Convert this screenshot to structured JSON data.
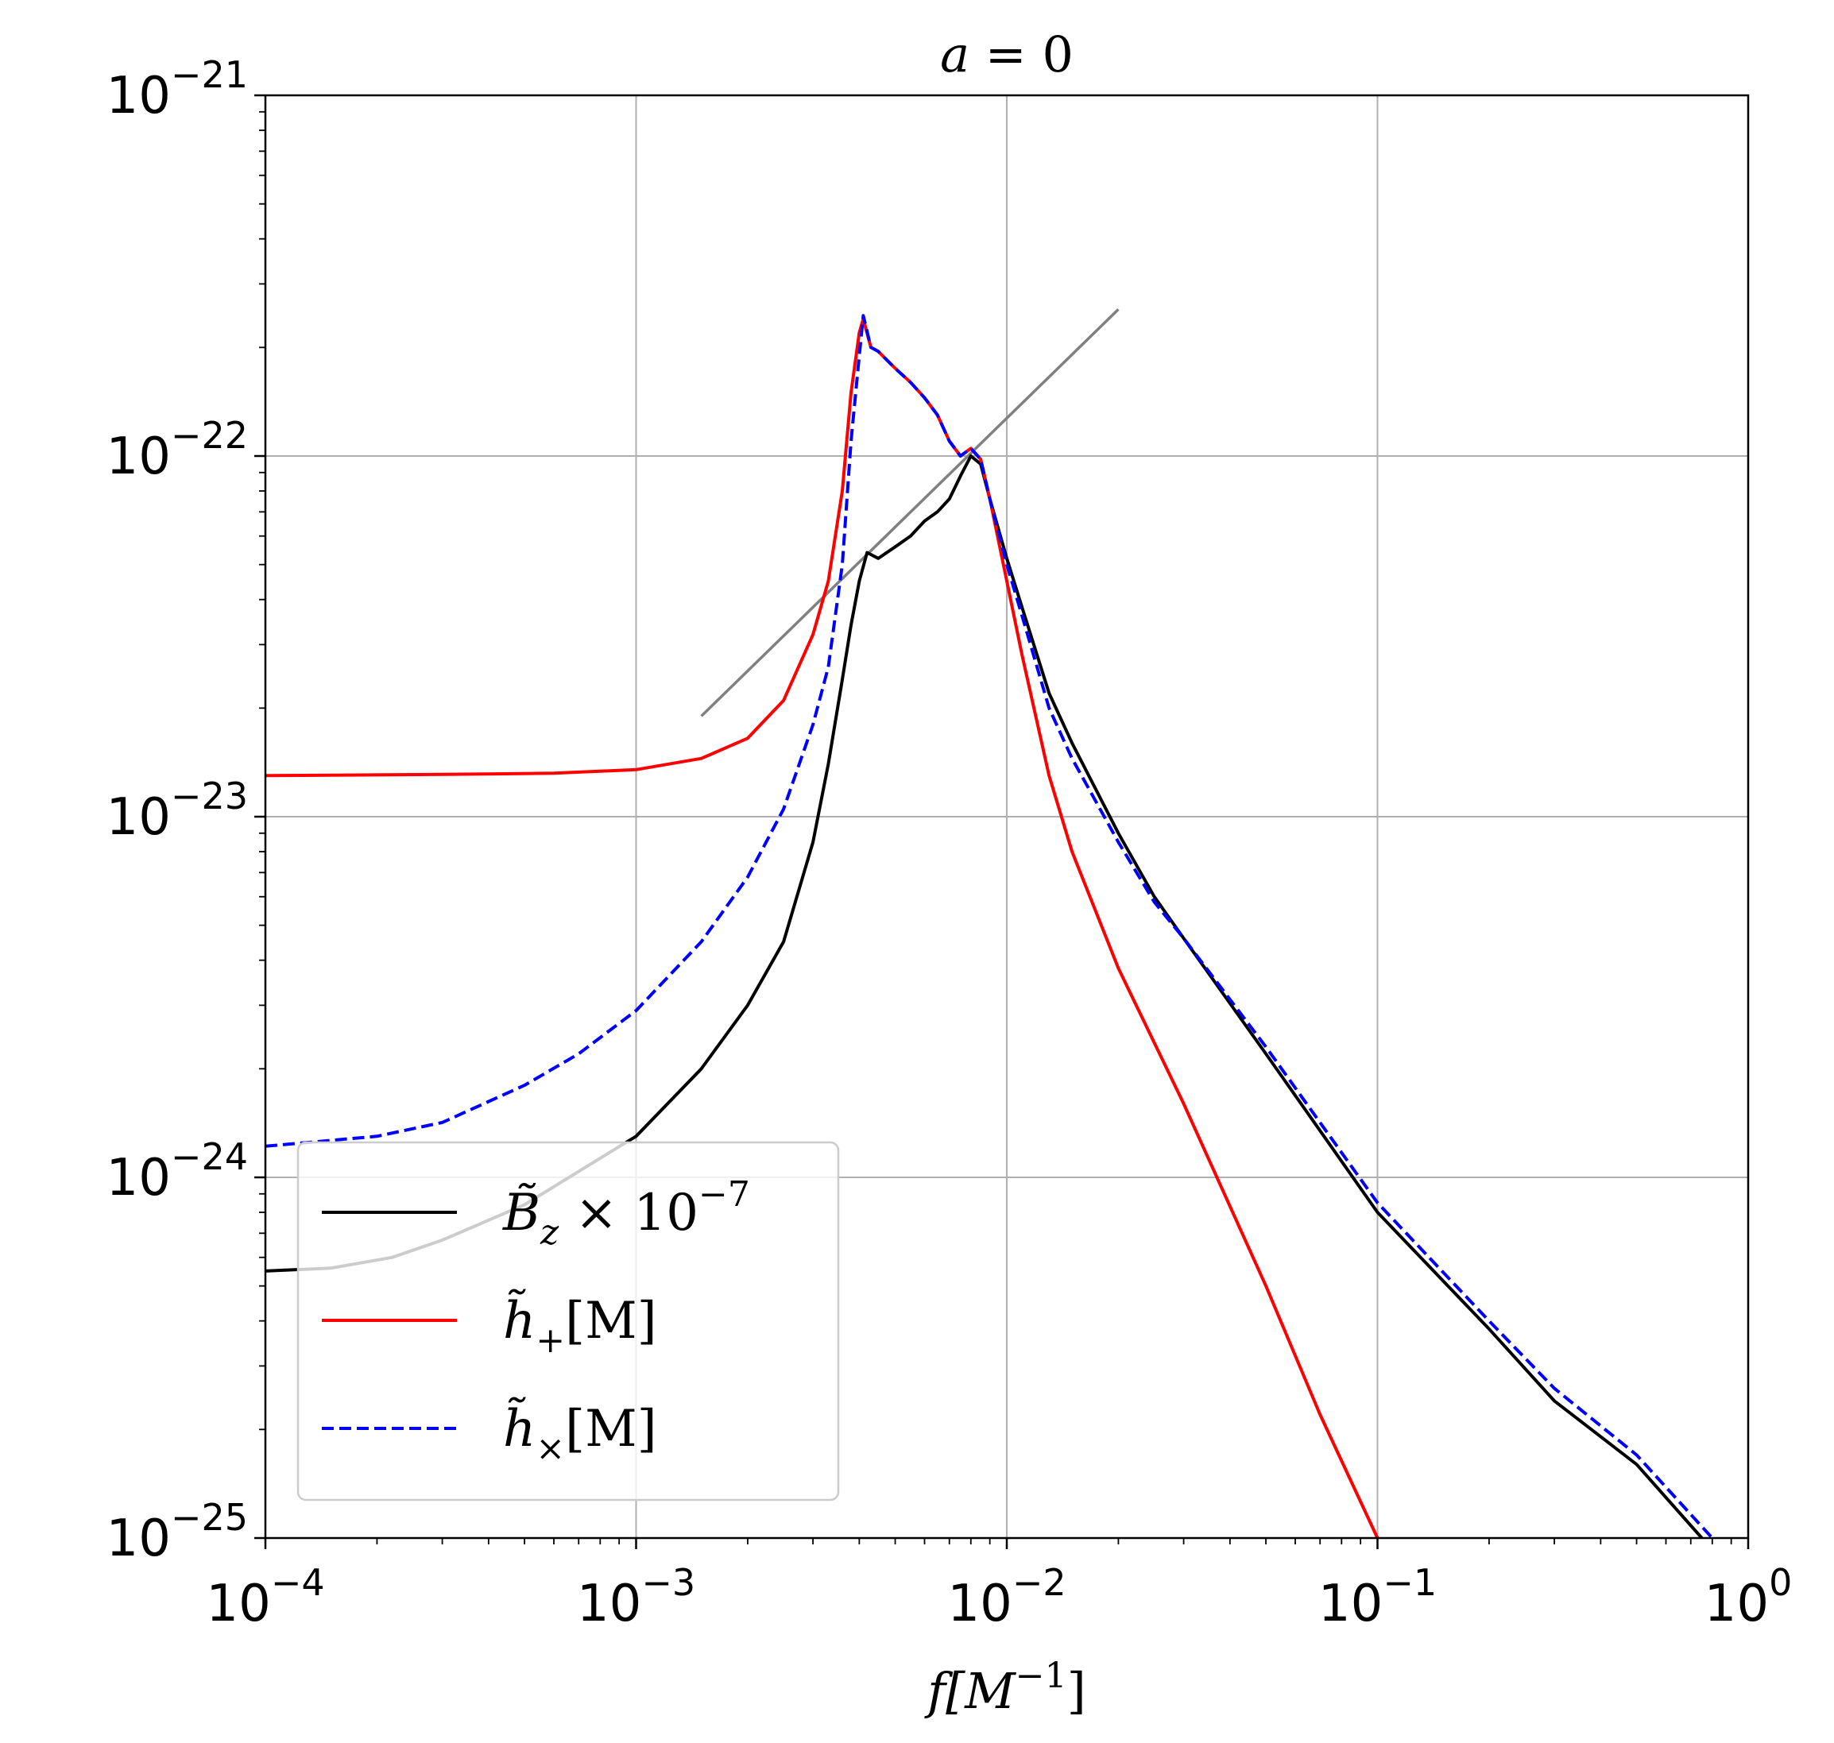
{
  "chart_data": {
    "type": "line",
    "title": "a = 0",
    "title_parts": {
      "var": "a",
      "eq": " = 0"
    },
    "xlabel": "f[M⁻¹]",
    "xlabel_parts": {
      "var": "f",
      "rest": "[M",
      "sup": "−1",
      "close": "]"
    },
    "ylabel": "",
    "x_scale": "log",
    "y_scale": "log",
    "xlim": [
      0.0001,
      1
    ],
    "ylim": [
      1e-25,
      1e-21
    ],
    "grid": true,
    "legend_position": "lower-left",
    "x_ticks": [
      {
        "value": 0.0001,
        "base": "10",
        "exp": "−4"
      },
      {
        "value": 0.001,
        "base": "10",
        "exp": "−3"
      },
      {
        "value": 0.01,
        "base": "10",
        "exp": "−2"
      },
      {
        "value": 0.1,
        "base": "10",
        "exp": "−1"
      },
      {
        "value": 1,
        "base": "10",
        "exp": "0"
      }
    ],
    "y_ticks": [
      {
        "value": 1e-25,
        "base": "10",
        "exp": "−25"
      },
      {
        "value": 1e-24,
        "base": "10",
        "exp": "−24"
      },
      {
        "value": 1e-23,
        "base": "10",
        "exp": "−23"
      },
      {
        "value": 1e-22,
        "base": "10",
        "exp": "−22"
      },
      {
        "value": 1e-21,
        "base": "10",
        "exp": "−21"
      }
    ],
    "series": [
      {
        "name": "B̃z × 10⁻⁷",
        "legend": {
          "main": "B̃",
          "sub": "z",
          "mid": " × 10",
          "sup": "−7"
        },
        "color": "#000000",
        "dash": "solid",
        "points": [
          [
            0.0001,
            5.5e-25
          ],
          [
            0.00015,
            5.6e-25
          ],
          [
            0.00022,
            6e-25
          ],
          [
            0.0003,
            6.7e-25
          ],
          [
            0.0005,
            8.4e-25
          ],
          [
            0.0008,
            1.13e-24
          ],
          [
            0.001,
            1.3e-24
          ],
          [
            0.0015,
            2e-24
          ],
          [
            0.002,
            3e-24
          ],
          [
            0.0025,
            4.5e-24
          ],
          [
            0.003,
            8.5e-24
          ],
          [
            0.0033,
            1.4e-23
          ],
          [
            0.0036,
            2.4e-23
          ],
          [
            0.0038,
            3.4e-23
          ],
          [
            0.004,
            4.5e-23
          ],
          [
            0.0042,
            5.4e-23
          ],
          [
            0.0045,
            5.2e-23
          ],
          [
            0.005,
            5.6e-23
          ],
          [
            0.0055,
            6e-23
          ],
          [
            0.006,
            6.6e-23
          ],
          [
            0.0065,
            7e-23
          ],
          [
            0.007,
            7.6e-23
          ],
          [
            0.0075,
            8.8e-23
          ],
          [
            0.008,
            1e-22
          ],
          [
            0.0085,
            9.5e-23
          ],
          [
            0.009,
            7.6e-23
          ],
          [
            0.01,
            5.2e-23
          ],
          [
            0.011,
            3.8e-23
          ],
          [
            0.013,
            2.2e-23
          ],
          [
            0.015,
            1.6e-23
          ],
          [
            0.02,
            9e-24
          ],
          [
            0.025,
            6e-24
          ],
          [
            0.03,
            4.6e-24
          ],
          [
            0.05,
            2.2e-24
          ],
          [
            0.1,
            8e-25
          ],
          [
            0.2,
            3.8e-25
          ],
          [
            0.3,
            2.4e-25
          ],
          [
            0.5,
            1.6e-25
          ],
          [
            0.75,
            1e-25
          ]
        ]
      },
      {
        "name": "h̃+ [M]",
        "legend": {
          "main": "h̃",
          "sub": "+",
          "mid": "[M]",
          "sup": ""
        },
        "color": "#ff0000",
        "dash": "solid",
        "points": [
          [
            0.0001,
            1.3e-23
          ],
          [
            0.0003,
            1.31e-23
          ],
          [
            0.0006,
            1.32e-23
          ],
          [
            0.001,
            1.35e-23
          ],
          [
            0.0015,
            1.45e-23
          ],
          [
            0.002,
            1.65e-23
          ],
          [
            0.0025,
            2.1e-23
          ],
          [
            0.003,
            3.2e-23
          ],
          [
            0.0033,
            4.5e-23
          ],
          [
            0.0036,
            8e-23
          ],
          [
            0.0038,
            1.5e-22
          ],
          [
            0.004,
            2.2e-22
          ],
          [
            0.0041,
            2.4e-22
          ],
          [
            0.0043,
            2e-22
          ],
          [
            0.0045,
            1.95e-22
          ],
          [
            0.005,
            1.75e-22
          ],
          [
            0.0055,
            1.6e-22
          ],
          [
            0.006,
            1.45e-22
          ],
          [
            0.0065,
            1.3e-22
          ],
          [
            0.007,
            1.1e-22
          ],
          [
            0.0075,
            1e-22
          ],
          [
            0.008,
            1.05e-22
          ],
          [
            0.0085,
            9.8e-23
          ],
          [
            0.009,
            7.6e-23
          ],
          [
            0.01,
            4.5e-23
          ],
          [
            0.011,
            2.8e-23
          ],
          [
            0.013,
            1.3e-23
          ],
          [
            0.015,
            8e-24
          ],
          [
            0.02,
            3.8e-24
          ],
          [
            0.03,
            1.6e-24
          ],
          [
            0.05,
            5e-25
          ],
          [
            0.07,
            2.2e-25
          ],
          [
            0.1,
            1e-25
          ]
        ]
      },
      {
        "name": "h̃× [M]",
        "legend": {
          "main": "h̃",
          "sub": "×",
          "mid": "[M]",
          "sup": ""
        },
        "color": "#0000ff",
        "dash": "dashed",
        "points": [
          [
            0.0001,
            1.22e-24
          ],
          [
            0.0002,
            1.3e-24
          ],
          [
            0.0003,
            1.42e-24
          ],
          [
            0.0005,
            1.8e-24
          ],
          [
            0.0007,
            2.2e-24
          ],
          [
            0.001,
            2.9e-24
          ],
          [
            0.0015,
            4.5e-24
          ],
          [
            0.002,
            6.8e-24
          ],
          [
            0.0025,
            1.05e-23
          ],
          [
            0.003,
            1.8e-23
          ],
          [
            0.0033,
            2.6e-23
          ],
          [
            0.0036,
            5e-23
          ],
          [
            0.0038,
            1.1e-22
          ],
          [
            0.004,
            1.9e-22
          ],
          [
            0.0041,
            2.45e-22
          ],
          [
            0.0043,
            2e-22
          ],
          [
            0.0045,
            1.95e-22
          ],
          [
            0.005,
            1.75e-22
          ],
          [
            0.0055,
            1.6e-22
          ],
          [
            0.006,
            1.45e-22
          ],
          [
            0.0065,
            1.3e-22
          ],
          [
            0.007,
            1.1e-22
          ],
          [
            0.0075,
            1e-22
          ],
          [
            0.008,
            1.05e-22
          ],
          [
            0.0085,
            9.8e-23
          ],
          [
            0.009,
            7.6e-23
          ],
          [
            0.01,
            5e-23
          ],
          [
            0.011,
            3.6e-23
          ],
          [
            0.013,
            2e-23
          ],
          [
            0.015,
            1.45e-23
          ],
          [
            0.02,
            8.5e-24
          ],
          [
            0.025,
            5.8e-24
          ],
          [
            0.03,
            4.6e-24
          ],
          [
            0.05,
            2.3e-24
          ],
          [
            0.1,
            8.5e-25
          ],
          [
            0.2,
            4e-25
          ],
          [
            0.3,
            2.6e-25
          ],
          [
            0.5,
            1.7e-25
          ],
          [
            0.8,
            1e-25
          ]
        ]
      },
      {
        "name": "",
        "color": "#808080",
        "dash": "solid",
        "in_legend": false,
        "points": [
          [
            0.0015,
            1.9e-23
          ],
          [
            0.02,
            2.55e-22
          ]
        ]
      }
    ]
  }
}
